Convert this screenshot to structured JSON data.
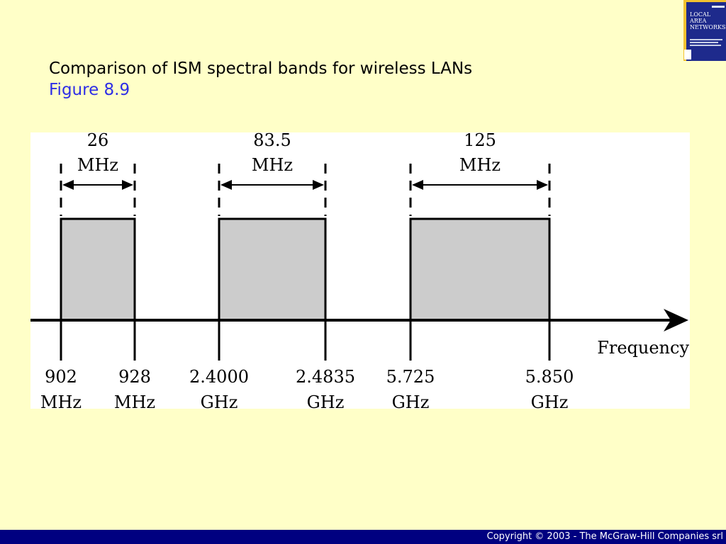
{
  "slide": {
    "title": "Comparison of ISM spectral bands for wireless LANs",
    "subtitle": "Figure 8.9",
    "footer": "Copyright © 2003 - The McGraw-Hill Companies srl"
  },
  "book_cover": {
    "title_lines": [
      "LOCAL",
      "AREA",
      "NETWORKS"
    ],
    "background_color": "#1E2A8C",
    "accent_color": "#F2C230"
  },
  "colors": {
    "background": "#FFFFC8",
    "title": "#000000",
    "subtitle": "#2E2EE6",
    "footer_bar": "#000080",
    "footer_text": "#FFFFFF",
    "band_fill": "#CCCCCC",
    "line": "#000000"
  },
  "diagram": {
    "axis_label": "Frequency",
    "bands": [
      {
        "width_value": "26",
        "width_unit": "MHz",
        "low_value": "902",
        "low_unit": "MHz",
        "high_value": "928",
        "high_unit": "MHz"
      },
      {
        "width_value": "83.5",
        "width_unit": "MHz",
        "low_value": "2.4000",
        "low_unit": "GHz",
        "high_value": "2.4835",
        "high_unit": "GHz"
      },
      {
        "width_value": "125",
        "width_unit": "MHz",
        "low_value": "5.725",
        "low_unit": "GHz",
        "high_value": "5.850",
        "high_unit": "GHz"
      }
    ]
  }
}
